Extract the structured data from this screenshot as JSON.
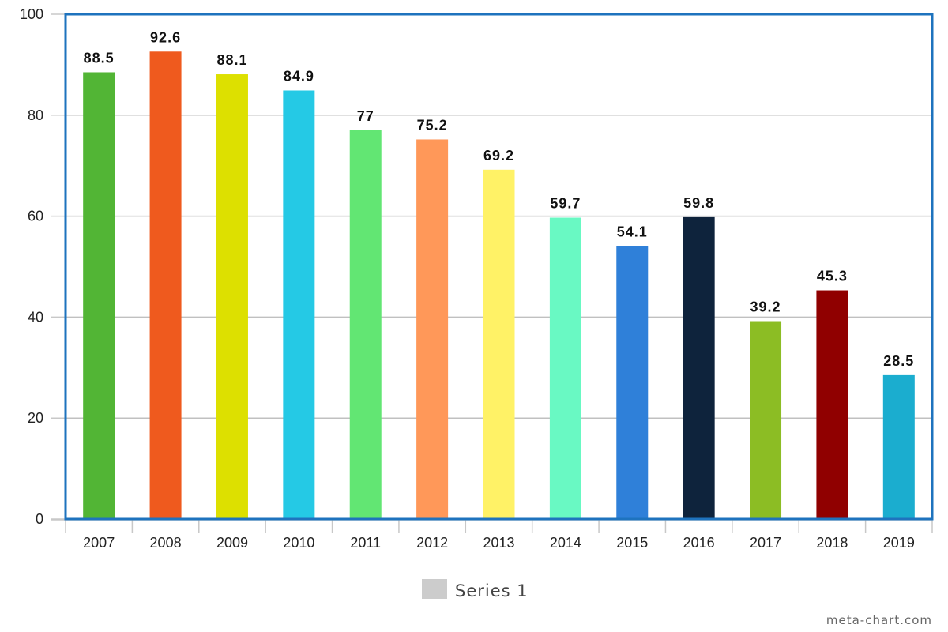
{
  "chart_data": {
    "type": "bar",
    "categories": [
      "2007",
      "2008",
      "2009",
      "2010",
      "2011",
      "2012",
      "2013",
      "2014",
      "2015",
      "2016",
      "2017",
      "2018",
      "2019"
    ],
    "series": [
      {
        "name": "Series 1",
        "values": [
          88.5,
          92.6,
          88.1,
          84.9,
          77,
          75.2,
          69.2,
          59.7,
          54.1,
          59.8,
          39.2,
          45.3,
          28.5
        ],
        "colors": [
          "#52b535",
          "#ef5a1e",
          "#dde000",
          "#25c9e5",
          "#62e673",
          "#ff9859",
          "#fff266",
          "#69f9c3",
          "#2f80d9",
          "#0e233c",
          "#8cbd24",
          "#900000",
          "#1badcf"
        ],
        "data_labels": [
          "88.5",
          "92.6",
          "88.1",
          "84.9",
          "77",
          "75.2",
          "69.2",
          "59.7",
          "54.1",
          "59.8",
          "39.2",
          "45.3",
          "28.5"
        ]
      }
    ],
    "y_ticks": [
      "0",
      "20",
      "40",
      "60",
      "80",
      "100"
    ],
    "ylim": [
      0,
      100
    ],
    "grid": true,
    "legend_position": "bottom-center",
    "legend_swatch_color": "#cccccc",
    "frame_color": "#1e73be",
    "grid_color": "#c0c0c0"
  },
  "credit": "meta-chart.com"
}
